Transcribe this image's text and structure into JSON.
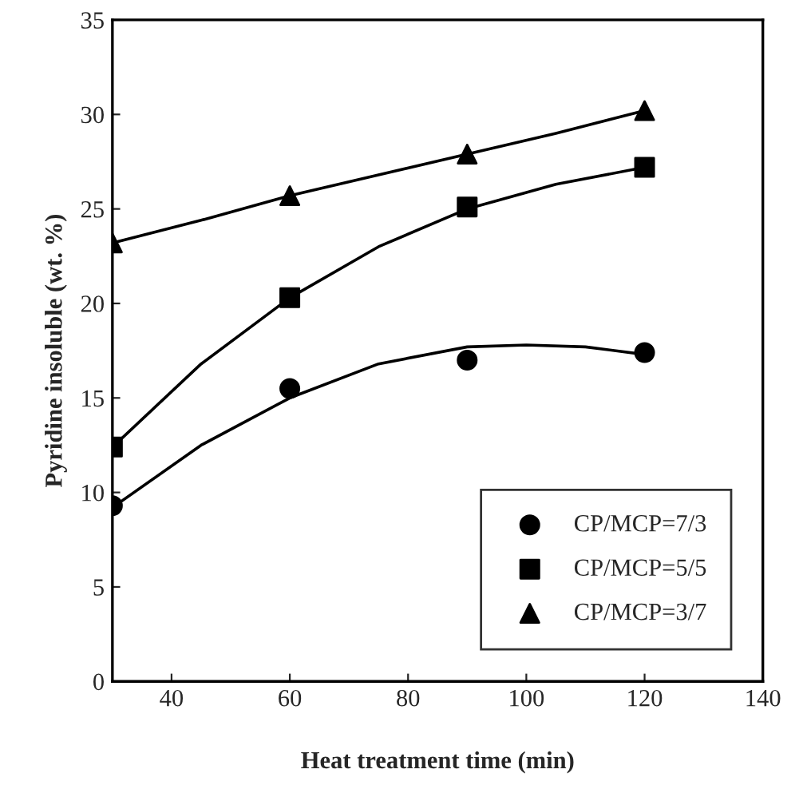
{
  "chart_data": {
    "type": "scatter",
    "xlabel": "Heat treatment time (min)",
    "ylabel": "Pyridine insoluble (wt. %)",
    "xlim": [
      30,
      140
    ],
    "xticks": [
      40,
      60,
      80,
      100,
      120,
      140
    ],
    "ylim": [
      0,
      35
    ],
    "yticks": [
      0,
      5,
      10,
      15,
      20,
      25,
      30,
      35
    ],
    "grid": false,
    "legend": "bottom right",
    "series": [
      {
        "type": "line",
        "color": "#000000",
        "marker": "none",
        "x": [
          30,
          45,
          60,
          75,
          90,
          100,
          110,
          120
        ],
        "values": [
          9.2,
          12.5,
          15,
          16.8,
          17.7,
          17.8,
          17.7,
          17.3
        ]
      },
      {
        "type": "line",
        "color": "#000000",
        "marker": "none",
        "x": [
          30,
          45,
          60,
          75,
          90,
          105,
          120
        ],
        "values": [
          12.4,
          16.8,
          20.3,
          23,
          25,
          26.3,
          27.2
        ]
      },
      {
        "type": "line",
        "color": "#000000",
        "marker": "none",
        "x": [
          30,
          45,
          60,
          75,
          90,
          105,
          120
        ],
        "values": [
          23.2,
          24.4,
          25.7,
          26.8,
          27.9,
          29,
          30.2
        ]
      },
      {
        "name": "CP/MCP=7/3",
        "color": "#000000",
        "marker": "circle",
        "x": [
          30,
          60,
          90,
          120
        ],
        "values": [
          9.3,
          15.5,
          17,
          17.4
        ]
      },
      {
        "name": "CP/MCP=5/5",
        "color": "#000000",
        "marker": "square",
        "x": [
          30,
          60,
          90,
          120
        ],
        "values": [
          12.4,
          20.3,
          25.1,
          27.2
        ]
      },
      {
        "name": "CP/MCP=3/7",
        "color": "#000000",
        "marker": "triangle",
        "x": [
          30,
          60,
          90,
          120
        ],
        "values": [
          23.2,
          25.7,
          27.9,
          30.2
        ]
      }
    ]
  }
}
